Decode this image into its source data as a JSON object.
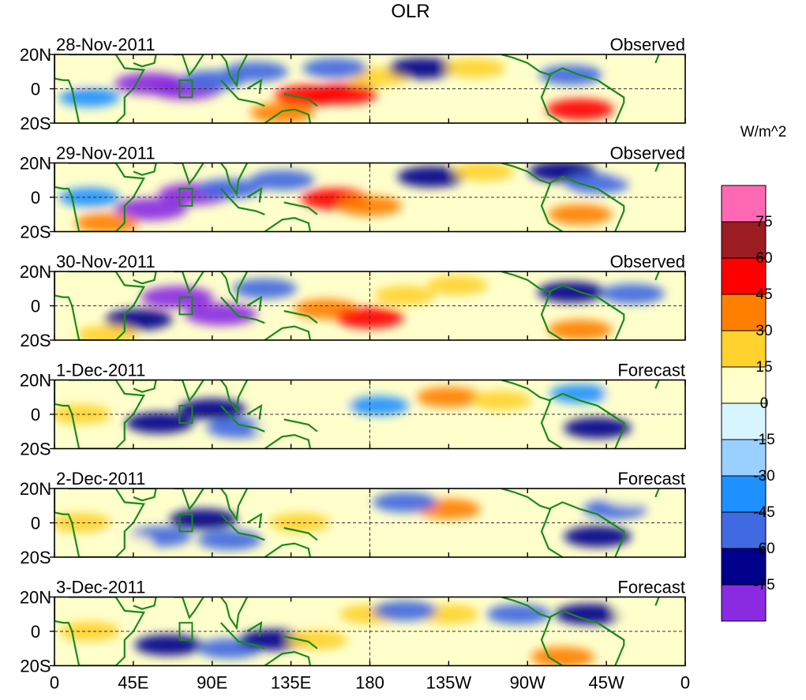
{
  "chart_data": {
    "type": "heatmap",
    "title": "OLR",
    "units_label": "W/m^2",
    "x_ticks": [
      "0",
      "45E",
      "90E",
      "135E",
      "180",
      "135W",
      "90W",
      "45W",
      "0"
    ],
    "x_tick_values": [
      0,
      45,
      90,
      135,
      180,
      225,
      270,
      315,
      360
    ],
    "y_ticks": [
      "20N",
      "0",
      "20S"
    ],
    "y_tick_values": [
      20,
      0,
      -20
    ],
    "xlim": [
      0,
      360
    ],
    "ylim": [
      -20,
      20
    ],
    "colorbar": {
      "levels": [
        75,
        60,
        45,
        30,
        15,
        0,
        -15,
        -30,
        -45,
        -60,
        -75
      ],
      "level_labels": [
        "75",
        "60",
        "45",
        "30",
        "15",
        "0",
        "-15",
        "-30",
        "-45",
        "-60",
        "-75"
      ],
      "colors": [
        "#ff69b4",
        "#9b1c22",
        "#ff0000",
        "#ff7f00",
        "#ffd22e",
        "#ffffcc",
        "#d6f5ff",
        "#9ad0ff",
        "#1e90ff",
        "#4169e1",
        "#00008b",
        "#8a2be2"
      ]
    },
    "panels": [
      {
        "date": "28-Nov-2011",
        "kind": "Observed",
        "anomalies": [
          {
            "lon": 55,
            "lat": 3,
            "value": -80
          },
          {
            "lon": 75,
            "lat": 0,
            "value": -80
          },
          {
            "lon": 90,
            "lat": 5,
            "value": -45
          },
          {
            "lon": 115,
            "lat": 10,
            "value": -45
          },
          {
            "lon": 145,
            "lat": -4,
            "value": 60
          },
          {
            "lon": 165,
            "lat": -3,
            "value": 60
          },
          {
            "lon": 130,
            "lat": -14,
            "value": 45
          },
          {
            "lon": 185,
            "lat": 7,
            "value": 30
          },
          {
            "lon": 210,
            "lat": 12,
            "value": -60
          },
          {
            "lon": 160,
            "lat": 12,
            "value": -45
          },
          {
            "lon": 240,
            "lat": 12,
            "value": 30
          },
          {
            "lon": 300,
            "lat": -12,
            "value": 60
          },
          {
            "lon": 295,
            "lat": 8,
            "value": -45
          },
          {
            "lon": 20,
            "lat": -5,
            "value": -30
          },
          {
            "lon": 10,
            "lat": 8,
            "value": 15
          },
          {
            "lon": 330,
            "lat": 10,
            "value": 15
          }
        ]
      },
      {
        "date": "29-Nov-2011",
        "kind": "Observed",
        "anomalies": [
          {
            "lon": 55,
            "lat": -7,
            "value": -80
          },
          {
            "lon": 80,
            "lat": 2,
            "value": -80
          },
          {
            "lon": 100,
            "lat": 5,
            "value": -45
          },
          {
            "lon": 160,
            "lat": -1,
            "value": 60
          },
          {
            "lon": 180,
            "lat": -5,
            "value": 45
          },
          {
            "lon": 215,
            "lat": 12,
            "value": -60
          },
          {
            "lon": 245,
            "lat": 15,
            "value": 30
          },
          {
            "lon": 290,
            "lat": 15,
            "value": -60
          },
          {
            "lon": 310,
            "lat": 8,
            "value": -45
          },
          {
            "lon": 300,
            "lat": -10,
            "value": 45
          },
          {
            "lon": 30,
            "lat": -15,
            "value": 45
          },
          {
            "lon": 20,
            "lat": 0,
            "value": -30
          },
          {
            "lon": 130,
            "lat": 10,
            "value": -45
          },
          {
            "lon": 335,
            "lat": 15,
            "value": 15
          }
        ]
      },
      {
        "date": "30-Nov-2011",
        "kind": "Observed",
        "anomalies": [
          {
            "lon": 70,
            "lat": 5,
            "value": -80
          },
          {
            "lon": 95,
            "lat": -5,
            "value": -80
          },
          {
            "lon": 48,
            "lat": -8,
            "value": -60
          },
          {
            "lon": 155,
            "lat": -2,
            "value": 45
          },
          {
            "lon": 180,
            "lat": -7,
            "value": 60
          },
          {
            "lon": 230,
            "lat": 12,
            "value": 30
          },
          {
            "lon": 300,
            "lat": -14,
            "value": 45
          },
          {
            "lon": 295,
            "lat": 8,
            "value": -60
          },
          {
            "lon": 330,
            "lat": 7,
            "value": -45
          },
          {
            "lon": 30,
            "lat": -17,
            "value": 30
          },
          {
            "lon": 10,
            "lat": 2,
            "value": 15
          },
          {
            "lon": 120,
            "lat": 10,
            "value": -45
          },
          {
            "lon": 200,
            "lat": 6,
            "value": 30
          }
        ]
      },
      {
        "date": "1-Dec-2011",
        "kind": "Forecast",
        "anomalies": [
          {
            "lon": 90,
            "lat": 3,
            "value": -60
          },
          {
            "lon": 60,
            "lat": -5,
            "value": -60
          },
          {
            "lon": 105,
            "lat": -8,
            "value": -45
          },
          {
            "lon": 225,
            "lat": 10,
            "value": 45
          },
          {
            "lon": 255,
            "lat": 8,
            "value": 30
          },
          {
            "lon": 310,
            "lat": -8,
            "value": -60
          },
          {
            "lon": 15,
            "lat": 0,
            "value": 30
          },
          {
            "lon": 155,
            "lat": 5,
            "value": 15
          },
          {
            "lon": 185,
            "lat": 5,
            "value": -30
          },
          {
            "lon": 300,
            "lat": 12,
            "value": -30
          },
          {
            "lon": 130,
            "lat": -8,
            "value": 15
          },
          {
            "lon": 330,
            "lat": 12,
            "value": 15
          }
        ]
      },
      {
        "date": "2-Dec-2011",
        "kind": "Forecast",
        "anomalies": [
          {
            "lon": 85,
            "lat": 2,
            "value": -60
          },
          {
            "lon": 60,
            "lat": -8,
            "value": -45
          },
          {
            "lon": 100,
            "lat": -10,
            "value": -45
          },
          {
            "lon": 225,
            "lat": 8,
            "value": 45
          },
          {
            "lon": 200,
            "lat": 12,
            "value": -45
          },
          {
            "lon": 310,
            "lat": -8,
            "value": -60
          },
          {
            "lon": 320,
            "lat": 8,
            "value": -45
          },
          {
            "lon": 15,
            "lat": 0,
            "value": 30
          },
          {
            "lon": 140,
            "lat": 0,
            "value": 30
          },
          {
            "lon": 270,
            "lat": 12,
            "value": 15
          },
          {
            "lon": 40,
            "lat": -12,
            "value": 15
          },
          {
            "lon": 330,
            "lat": 15,
            "value": 15
          }
        ]
      },
      {
        "date": "3-Dec-2011",
        "kind": "Forecast",
        "anomalies": [
          {
            "lon": 65,
            "lat": -8,
            "value": -60
          },
          {
            "lon": 100,
            "lat": -10,
            "value": -45
          },
          {
            "lon": 125,
            "lat": -5,
            "value": -60
          },
          {
            "lon": 150,
            "lat": -5,
            "value": 30
          },
          {
            "lon": 180,
            "lat": 10,
            "value": 30
          },
          {
            "lon": 225,
            "lat": 10,
            "value": 30
          },
          {
            "lon": 265,
            "lat": 10,
            "value": -45
          },
          {
            "lon": 305,
            "lat": 10,
            "value": -60
          },
          {
            "lon": 290,
            "lat": -15,
            "value": 45
          },
          {
            "lon": 20,
            "lat": 0,
            "value": 30
          },
          {
            "lon": 200,
            "lat": 12,
            "value": -45
          },
          {
            "lon": 335,
            "lat": 12,
            "value": 15
          }
        ]
      }
    ]
  }
}
